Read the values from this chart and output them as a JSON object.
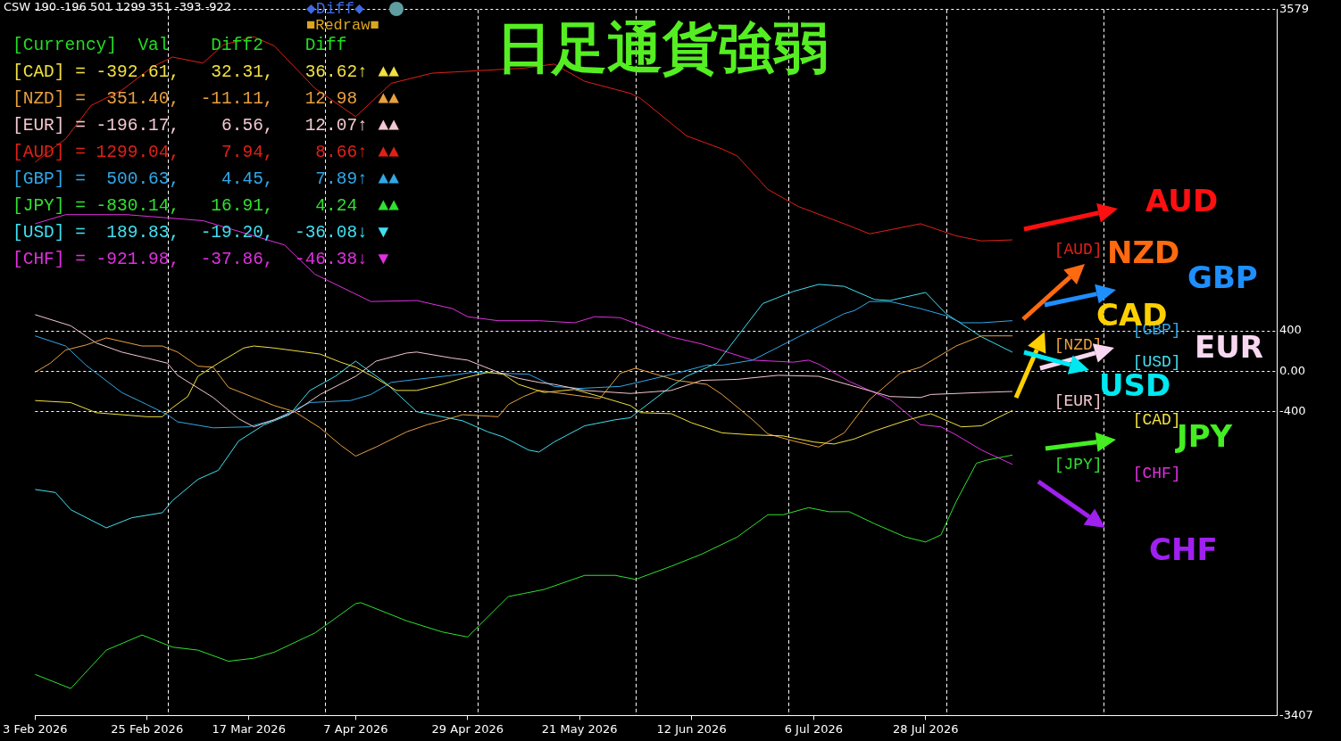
{
  "chart_data": {
    "type": "line",
    "title": "日足通貨強弱",
    "xlim": [
      "2026-02-03",
      "2026-10-05"
    ],
    "xticks": [
      {
        "value": "2026-02-03",
        "label": "3 Feb 2026"
      },
      {
        "value": "2026-02-25",
        "label": "25 Feb 2026"
      },
      {
        "value": "2026-03-17",
        "label": "17 Mar 2026"
      },
      {
        "value": "2026-04-07",
        "label": "7 Apr 2026"
      },
      {
        "value": "2026-04-29",
        "label": "29 Apr 2026"
      },
      {
        "value": "2026-05-21",
        "label": "21 May 2026"
      },
      {
        "value": "2026-06-12",
        "label": "12 Jun 2026"
      },
      {
        "value": "2026-07-06",
        "label": "6 Jul 2026"
      },
      {
        "value": "2026-07-28",
        "label": "28 Jul 2026"
      }
    ],
    "ylim": [
      -3407,
      3579
    ],
    "yticks": [
      3579,
      400,
      {
        "value": 0,
        "label": "0.00"
      },
      -400,
      -3407
    ],
    "grid": "y",
    "marker": "none",
    "line_style": "solid",
    "ref_lines": [
      {
        "axis": "x",
        "value": "2026-03-01",
        "line_style": "dashed"
      },
      {
        "axis": "x",
        "value": "2026-04-01",
        "line_style": "dashed"
      },
      {
        "axis": "x",
        "value": "2026-05-01",
        "line_style": "dashed"
      },
      {
        "axis": "x",
        "value": "2026-06-01",
        "line_style": "dashed"
      },
      {
        "axis": "x",
        "value": "2026-07-01",
        "line_style": "dashed"
      },
      {
        "axis": "x",
        "value": "2026-08-01",
        "line_style": "dashed"
      },
      {
        "axis": "x",
        "value": "2026-09-01",
        "line_style": "dashed"
      }
    ],
    "series": [
      {
        "name": "[CAD]",
        "color": "#f0e040",
        "x": [
          "2026-02-03",
          "2026-02-10",
          "2026-02-15",
          "2026-02-25",
          "2026-02-28",
          "2026-03-02",
          "2026-03-05",
          "2026-03-07",
          "2026-03-11",
          "2026-03-16",
          "2026-03-18",
          "2026-03-22",
          "2026-03-28",
          "2026-03-31",
          "2026-04-04",
          "2026-04-07",
          "2026-04-11",
          "2026-04-15",
          "2026-04-19",
          "2026-04-24",
          "2026-04-28",
          "2026-05-03",
          "2026-05-06",
          "2026-05-09",
          "2026-05-14",
          "2026-05-20",
          "2026-05-25",
          "2026-05-31",
          "2026-06-02",
          "2026-06-08",
          "2026-06-12",
          "2026-06-18",
          "2026-06-24",
          "2026-06-30",
          "2026-07-06",
          "2026-07-10",
          "2026-07-14",
          "2026-07-18",
          "2026-07-24",
          "2026-07-29",
          "2026-08-04",
          "2026-08-08",
          "2026-08-14"
        ],
        "values": [
          -290,
          -310,
          -410,
          -450,
          -450,
          -360,
          -250,
          -50,
          80,
          230,
          250,
          230,
          190,
          170,
          90,
          40,
          -70,
          -190,
          -190,
          -130,
          -70,
          -10,
          -30,
          -130,
          -210,
          -180,
          -250,
          -340,
          -410,
          -420,
          -510,
          -610,
          -630,
          -640,
          -700,
          -720,
          -670,
          -590,
          -490,
          -420,
          -550,
          -540,
          -390
        ]
      },
      {
        "name": "[NZD]",
        "color": "#e8a040",
        "x": [
          "2026-02-03",
          "2026-02-06",
          "2026-02-09",
          "2026-02-13",
          "2026-02-17",
          "2026-02-24",
          "2026-02-28",
          "2026-03-03",
          "2026-03-07",
          "2026-03-10",
          "2026-03-13",
          "2026-03-18",
          "2026-03-22",
          "2026-03-26",
          "2026-03-31",
          "2026-04-04",
          "2026-04-07",
          "2026-04-11",
          "2026-04-17",
          "2026-04-21",
          "2026-04-24",
          "2026-04-28",
          "2026-05-05",
          "2026-05-07",
          "2026-05-10",
          "2026-05-13",
          "2026-05-22",
          "2026-05-25",
          "2026-05-29",
          "2026-06-01",
          "2026-06-09",
          "2026-06-15",
          "2026-06-18",
          "2026-06-24",
          "2026-06-27",
          "2026-07-02",
          "2026-07-07",
          "2026-07-12",
          "2026-07-17",
          "2026-07-23",
          "2026-07-27",
          "2026-08-03",
          "2026-08-08",
          "2026-08-14"
        ],
        "values": [
          -10,
          80,
          210,
          260,
          330,
          250,
          250,
          190,
          50,
          40,
          -160,
          -260,
          -340,
          -400,
          -560,
          -730,
          -840,
          -750,
          -600,
          -530,
          -490,
          -430,
          -450,
          -330,
          -250,
          -190,
          -250,
          -270,
          -20,
          30,
          -90,
          -130,
          -230,
          -480,
          -620,
          -690,
          -750,
          -610,
          -280,
          -20,
          40,
          250,
          350,
          350
        ]
      },
      {
        "name": "[EUR]",
        "color": "#f4c8d0",
        "x": [
          "2026-02-03",
          "2026-02-10",
          "2026-02-15",
          "2026-02-20",
          "2026-02-25",
          "2026-03-01",
          "2026-03-03",
          "2026-03-10",
          "2026-03-15",
          "2026-03-18",
          "2026-03-22",
          "2026-03-26",
          "2026-03-31",
          "2026-04-07",
          "2026-04-11",
          "2026-04-17",
          "2026-04-19",
          "2026-04-26",
          "2026-04-29",
          "2026-05-05",
          "2026-05-09",
          "2026-05-13",
          "2026-05-16",
          "2026-05-22",
          "2026-05-31",
          "2026-06-08",
          "2026-06-14",
          "2026-06-21",
          "2026-06-29",
          "2026-07-07",
          "2026-07-14",
          "2026-07-21",
          "2026-07-27",
          "2026-07-29",
          "2026-08-08",
          "2026-08-14"
        ],
        "values": [
          560,
          450,
          280,
          190,
          130,
          80,
          -40,
          -260,
          -470,
          -550,
          -480,
          -400,
          -230,
          -50,
          100,
          180,
          190,
          130,
          110,
          -10,
          -70,
          -110,
          -130,
          -190,
          -220,
          -190,
          -90,
          -80,
          -40,
          -50,
          -150,
          -250,
          -260,
          -230,
          -210,
          -200
        ]
      },
      {
        "name": "[AUD]",
        "color": "#e02018",
        "x": [
          "2026-02-03",
          "2026-02-09",
          "2026-02-14",
          "2026-02-20",
          "2026-02-26",
          "2026-03-02",
          "2026-03-08",
          "2026-03-12",
          "2026-03-18",
          "2026-03-22",
          "2026-03-30",
          "2026-04-07",
          "2026-04-14",
          "2026-04-22",
          "2026-05-03",
          "2026-05-10",
          "2026-05-16",
          "2026-05-22",
          "2026-05-31",
          "2026-06-02",
          "2026-06-11",
          "2026-06-18",
          "2026-06-21",
          "2026-06-27",
          "2026-07-03",
          "2026-07-12",
          "2026-07-17",
          "2026-07-27",
          "2026-08-03",
          "2026-08-08",
          "2026-08-14"
        ],
        "values": [
          2070,
          2300,
          2630,
          2780,
          3010,
          3110,
          3050,
          3230,
          3310,
          3220,
          2800,
          2520,
          2850,
          2950,
          2980,
          3000,
          3040,
          2870,
          2750,
          2700,
          2330,
          2200,
          2130,
          1800,
          1630,
          1460,
          1360,
          1460,
          1340,
          1290,
          1300
        ]
      },
      {
        "name": "[GBP]",
        "color": "#30a8e8",
        "x": [
          "2026-02-03",
          "2026-02-09",
          "2026-02-13",
          "2026-02-20",
          "2026-02-25",
          "2026-03-01",
          "2026-03-03",
          "2026-03-10",
          "2026-03-17",
          "2026-03-22",
          "2026-03-29",
          "2026-04-06",
          "2026-04-10",
          "2026-04-14",
          "2026-04-19",
          "2026-04-26",
          "2026-04-30",
          "2026-05-06",
          "2026-05-11",
          "2026-05-16",
          "2026-05-21",
          "2026-05-29",
          "2026-06-04",
          "2026-06-09",
          "2026-06-15",
          "2026-06-18",
          "2026-06-24",
          "2026-07-03",
          "2026-07-12",
          "2026-07-14",
          "2026-07-17",
          "2026-07-21",
          "2026-07-27",
          "2026-08-01",
          "2026-08-04",
          "2026-08-08",
          "2026-08-14"
        ],
        "values": [
          350,
          250,
          60,
          -210,
          -330,
          -430,
          -500,
          -560,
          -550,
          -480,
          -310,
          -290,
          -230,
          -110,
          -80,
          -40,
          -10,
          -20,
          -30,
          -150,
          -170,
          -150,
          -80,
          -20,
          60,
          60,
          110,
          340,
          570,
          600,
          690,
          690,
          620,
          550,
          480,
          480,
          500
        ]
      },
      {
        "name": "[JPY]",
        "color": "#30e030",
        "x": [
          "2026-02-03",
          "2026-02-10",
          "2026-02-17",
          "2026-02-24",
          "2026-03-02",
          "2026-03-07",
          "2026-03-13",
          "2026-03-18",
          "2026-03-22",
          "2026-03-30",
          "2026-04-07",
          "2026-04-08",
          "2026-04-17",
          "2026-04-24",
          "2026-04-29",
          "2026-05-07",
          "2026-05-10",
          "2026-05-14",
          "2026-05-22",
          "2026-05-28",
          "2026-06-01",
          "2026-06-08",
          "2026-06-14",
          "2026-06-21",
          "2026-06-27",
          "2026-06-30",
          "2026-07-05",
          "2026-07-09",
          "2026-07-13",
          "2026-07-18",
          "2026-07-24",
          "2026-07-28",
          "2026-07-31",
          "2026-08-03",
          "2026-08-07",
          "2026-08-09",
          "2026-08-14"
        ],
        "values": [
          -3000,
          -3140,
          -2760,
          -2610,
          -2730,
          -2760,
          -2870,
          -2840,
          -2780,
          -2590,
          -2300,
          -2290,
          -2470,
          -2580,
          -2630,
          -2230,
          -2200,
          -2160,
          -2020,
          -2020,
          -2060,
          -1930,
          -1810,
          -1640,
          -1420,
          -1420,
          -1350,
          -1390,
          -1390,
          -1510,
          -1640,
          -1690,
          -1620,
          -1290,
          -910,
          -880,
          -830
        ]
      },
      {
        "name": "[USD]",
        "color": "#40e0f0",
        "x": [
          "2026-02-03",
          "2026-02-07",
          "2026-02-10",
          "2026-02-17",
          "2026-02-22",
          "2026-02-28",
          "2026-03-02",
          "2026-03-07",
          "2026-03-11",
          "2026-03-15",
          "2026-03-20",
          "2026-03-25",
          "2026-03-29",
          "2026-04-03",
          "2026-04-07",
          "2026-04-13",
          "2026-04-19",
          "2026-04-28",
          "2026-05-03",
          "2026-05-06",
          "2026-05-11",
          "2026-05-13",
          "2026-05-16",
          "2026-05-22",
          "2026-05-28",
          "2026-05-31",
          "2026-06-02",
          "2026-06-08",
          "2026-06-11",
          "2026-06-17",
          "2026-06-26",
          "2026-07-02",
          "2026-07-07",
          "2026-07-12",
          "2026-07-18",
          "2026-07-21",
          "2026-07-28",
          "2026-08-01",
          "2026-08-08",
          "2026-08-14"
        ],
        "values": [
          -1170,
          -1200,
          -1370,
          -1550,
          -1450,
          -1400,
          -1280,
          -1070,
          -980,
          -690,
          -530,
          -430,
          -190,
          -50,
          100,
          -120,
          -400,
          -490,
          -600,
          -650,
          -780,
          -800,
          -700,
          -540,
          -480,
          -460,
          -380,
          -150,
          -50,
          80,
          670,
          790,
          860,
          840,
          710,
          700,
          780,
          570,
          340,
          190
        ]
      },
      {
        "name": "[CHF]",
        "color": "#e030e0",
        "x": [
          "2026-02-03",
          "2026-02-09",
          "2026-02-21",
          "2026-03-08",
          "2026-03-24",
          "2026-03-30",
          "2026-04-10",
          "2026-04-19",
          "2026-04-26",
          "2026-04-29",
          "2026-05-05",
          "2026-05-13",
          "2026-05-20",
          "2026-05-24",
          "2026-05-29",
          "2026-06-08",
          "2026-06-14",
          "2026-06-24",
          "2026-07-02",
          "2026-07-05",
          "2026-07-07",
          "2026-07-13",
          "2026-07-17",
          "2026-07-21",
          "2026-07-27",
          "2026-07-31",
          "2026-08-03",
          "2026-08-08",
          "2026-08-14"
        ],
        "values": [
          1460,
          1550,
          1550,
          1490,
          1250,
          960,
          690,
          700,
          620,
          540,
          500,
          500,
          480,
          540,
          530,
          340,
          270,
          110,
          90,
          110,
          70,
          -100,
          -190,
          -280,
          -530,
          -550,
          -630,
          -780,
          -920
        ]
      }
    ],
    "annotations": [
      "CSW 190 -196 501 1299 351 -393 -922",
      "[Currency]  Val    Diff2    Diff",
      "[CAD] = -392.61,   32.31,   36.62↑ ▲▲",
      "[NZD] =  351.40,  -11.11,   12.98  ▲▲",
      "[EUR] = -196.17,    6.56,   12.07↑ ▲▲",
      "[AUD] = 1299.04,    7.94,    8.66↑ ▲▲",
      "[GBP] =  500.63,    4.45,    7.89↑ ▲▲",
      "[JPY] = -830.14,   16.91,    4.24  ▲▲",
      "[USD] =  189.83,  -19.20,  -36.08↓ ▼",
      "[CHF] = -921.98,  -37.86,  -46.38↓ ▼",
      "◆Diff◆",
      "■Redraw■",
      "AUD",
      "NZD",
      "GBP",
      "CAD",
      "EUR",
      "USD",
      "JPY",
      "CHF"
    ]
  }
}
